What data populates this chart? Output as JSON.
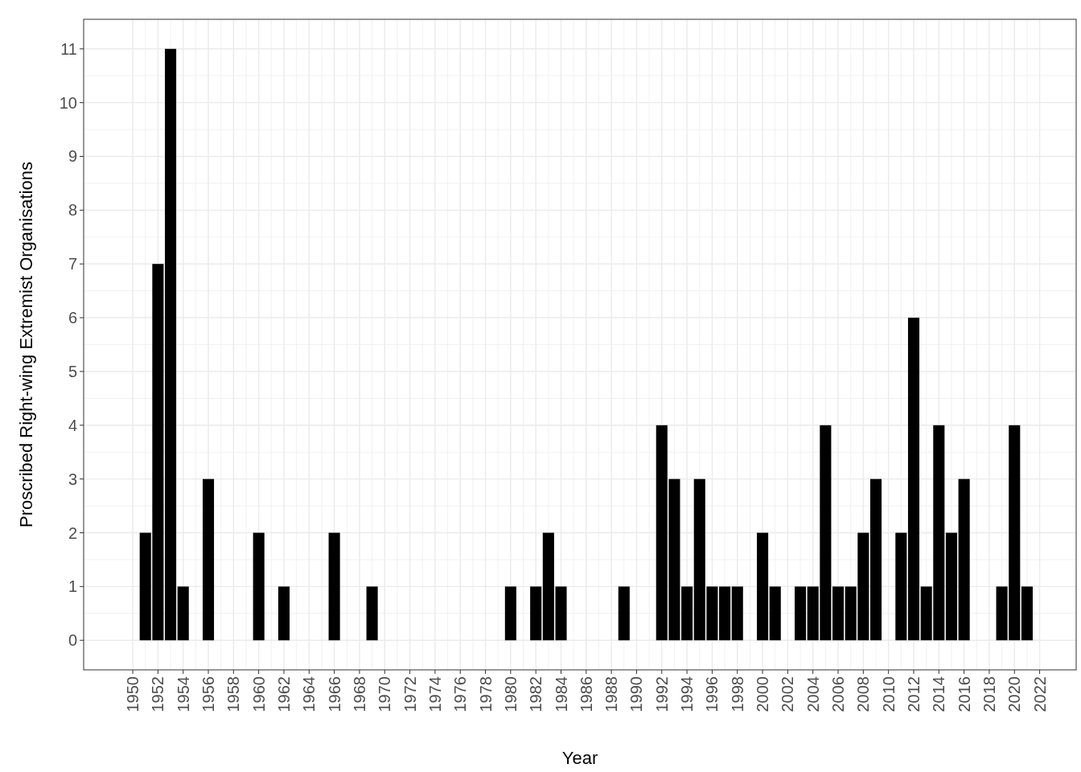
{
  "chart_data": {
    "type": "bar",
    "xlabel": "Year",
    "ylabel": "Proscribed Right-wing Extremist Organisations",
    "x": [
      1951,
      1952,
      1953,
      1954,
      1956,
      1960,
      1962,
      1966,
      1969,
      1980,
      1982,
      1983,
      1984,
      1989,
      1992,
      1993,
      1994,
      1995,
      1996,
      1997,
      1998,
      2000,
      2001,
      2003,
      2004,
      2005,
      2006,
      2007,
      2008,
      2009,
      2011,
      2012,
      2013,
      2014,
      2015,
      2016,
      2019,
      2020,
      2021
    ],
    "values": [
      2,
      7,
      11,
      1,
      3,
      2,
      1,
      2,
      1,
      1,
      1,
      2,
      1,
      1,
      4,
      3,
      1,
      3,
      1,
      1,
      1,
      2,
      1,
      1,
      1,
      4,
      1,
      1,
      2,
      3,
      2,
      6,
      1,
      4,
      2,
      3,
      1,
      4,
      1
    ],
    "color": "#000000",
    "xlim": [
      1946.1,
      2024.9
    ],
    "xticks": [
      1950,
      1952,
      1954,
      1956,
      1958,
      1960,
      1962,
      1964,
      1966,
      1968,
      1970,
      1972,
      1974,
      1976,
      1978,
      1980,
      1982,
      1984,
      1986,
      1988,
      1990,
      1992,
      1994,
      1996,
      1998,
      2000,
      2002,
      2004,
      2006,
      2008,
      2010,
      2012,
      2014,
      2016,
      2018,
      2020,
      2022
    ],
    "ylim": [
      -0.55,
      11.55
    ],
    "yticks": [
      0,
      1,
      2,
      3,
      4,
      5,
      6,
      7,
      8,
      9,
      10,
      11
    ],
    "grid": true
  }
}
